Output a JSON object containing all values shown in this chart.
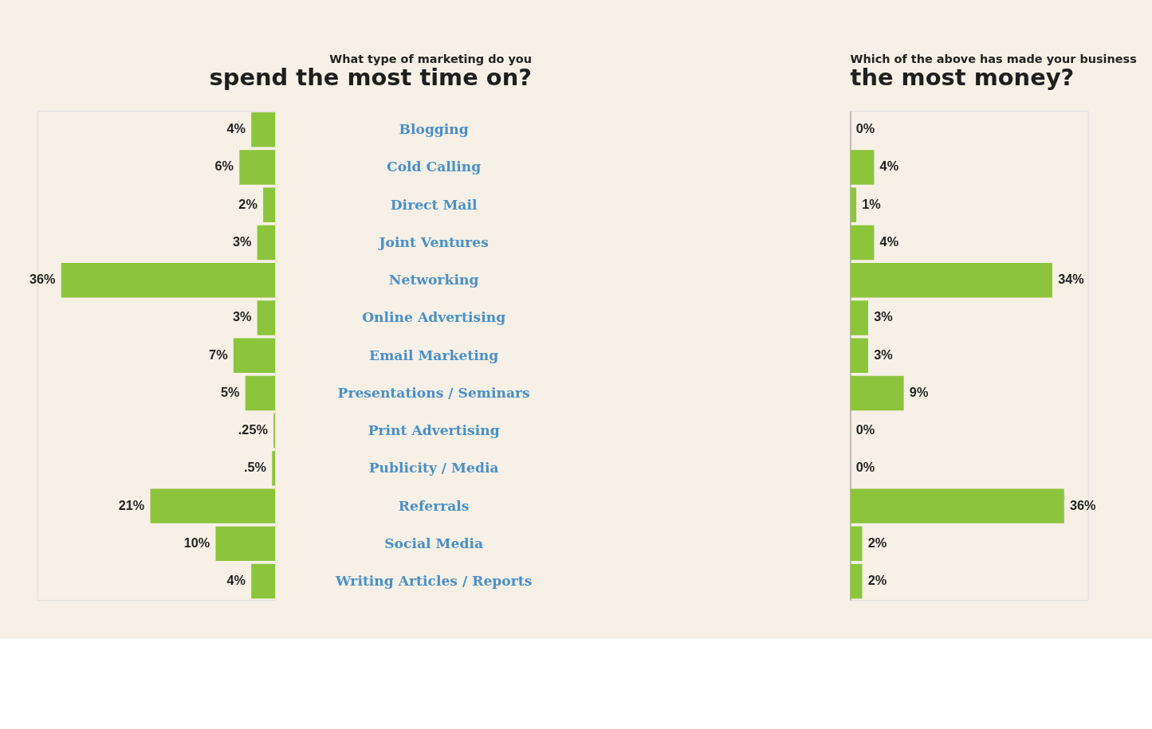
{
  "chart_data": [
    {
      "type": "bar",
      "orientation": "horizontal",
      "title": "What type of marketing do you",
      "subtitle": "spend the most time on?",
      "categories": [
        "Blogging",
        "Cold Calling",
        "Direct Mail",
        "Joint Ventures",
        "Networking",
        "Online Advertising",
        "Email Marketing",
        "Presentations / Seminars",
        "Print Advertising",
        "Publicity / Media",
        "Referrals",
        "Social Media",
        "Writing Articles / Reports"
      ],
      "values": [
        4,
        6,
        2,
        3,
        36,
        3,
        7,
        5,
        0.25,
        0.5,
        21,
        10,
        4
      ],
      "value_labels": [
        "4%",
        "6%",
        "2%",
        "3%",
        "36%",
        "3%",
        "7%",
        "5%",
        ".25%",
        ".5%",
        "21%",
        "10%",
        "4%"
      ],
      "color": "#8cc43c",
      "xlim": [
        40,
        0
      ],
      "tick_labels": "y"
    },
    {
      "type": "bar",
      "orientation": "horizontal",
      "title": "Which of the above has made your business",
      "subtitle": "the most money?",
      "categories": [
        "Blogging",
        "Cold Calling",
        "Direct Mail",
        "Joint Ventures",
        "Networking",
        "Online Advertising",
        "Email Marketing",
        "Presentations / Seminars",
        "Print Advertising",
        "Publicity / Media",
        "Referrals",
        "Social Media",
        "Writing Articles / Reports"
      ],
      "values": [
        0,
        4,
        1,
        4,
        34,
        3,
        3,
        9,
        0,
        0,
        36,
        2,
        2
      ],
      "value_labels": [
        "0%",
        "4%",
        "1%",
        "4%",
        "34%",
        "3%",
        "3%",
        "9%",
        "0%",
        "0%",
        "36%",
        "2%",
        "2%"
      ],
      "color": "#8cc43c",
      "xlim": [
        0,
        40
      ],
      "tick_labels": false
    }
  ]
}
